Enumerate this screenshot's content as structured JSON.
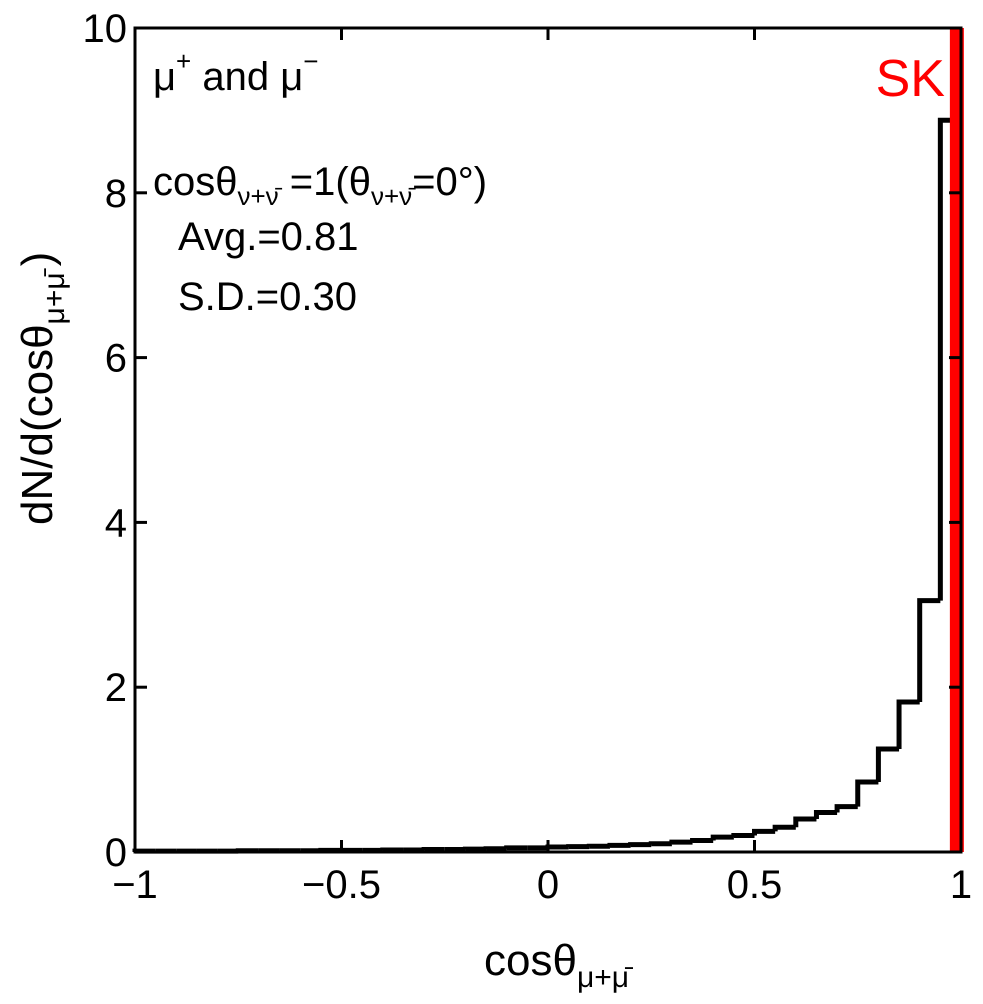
{
  "chart_data": {
    "type": "histogram",
    "xlabel": {
      "main": "cosθ",
      "sub": "μ+μ̄"
    },
    "ylabel": {
      "main": "dN/d(cosθ",
      "sub": "μ+μ̄",
      "close": ")"
    },
    "xlim": [
      -1,
      1
    ],
    "ylim": [
      0,
      10
    ],
    "xticks": [
      -1,
      -0.5,
      0,
      0.5,
      1
    ],
    "xtick_labels": [
      "−1",
      "−0.5",
      "0",
      "0.5",
      "1"
    ],
    "yticks": [
      0,
      2,
      4,
      6,
      8,
      10
    ],
    "ytick_labels": [
      "0",
      "2",
      "4",
      "6",
      "8",
      "10"
    ],
    "grid": false,
    "bin_width": 0.05,
    "bin_edges_start": -1,
    "values": [
      0.01,
      0.01,
      0.01,
      0.01,
      0.01,
      0.015,
      0.015,
      0.015,
      0.015,
      0.02,
      0.02,
      0.02,
      0.025,
      0.025,
      0.03,
      0.03,
      0.035,
      0.04,
      0.05,
      0.05,
      0.06,
      0.065,
      0.07,
      0.08,
      0.09,
      0.1,
      0.12,
      0.14,
      0.18,
      0.2,
      0.25,
      0.3,
      0.4,
      0.48,
      0.55,
      0.85,
      1.25,
      1.82,
      3.05,
      8.88
    ],
    "marker_line": {
      "x": 0.99,
      "label": "SK",
      "color": "#ff0000"
    },
    "annotations": {
      "particles": {
        "mu": "μ",
        "plus": "+",
        "and": " and μ",
        "minus": "−"
      },
      "direction": {
        "a": "cosθ",
        "sub1": "ν+ν̄",
        "b": " =1(θ",
        "sub2": "ν+ν̄",
        "c": "=0°)"
      },
      "avg": "Avg.=0.81",
      "sd": "S.D.=0.30"
    },
    "colors": {
      "hist": "#000000",
      "marker": "#ff0000"
    }
  }
}
